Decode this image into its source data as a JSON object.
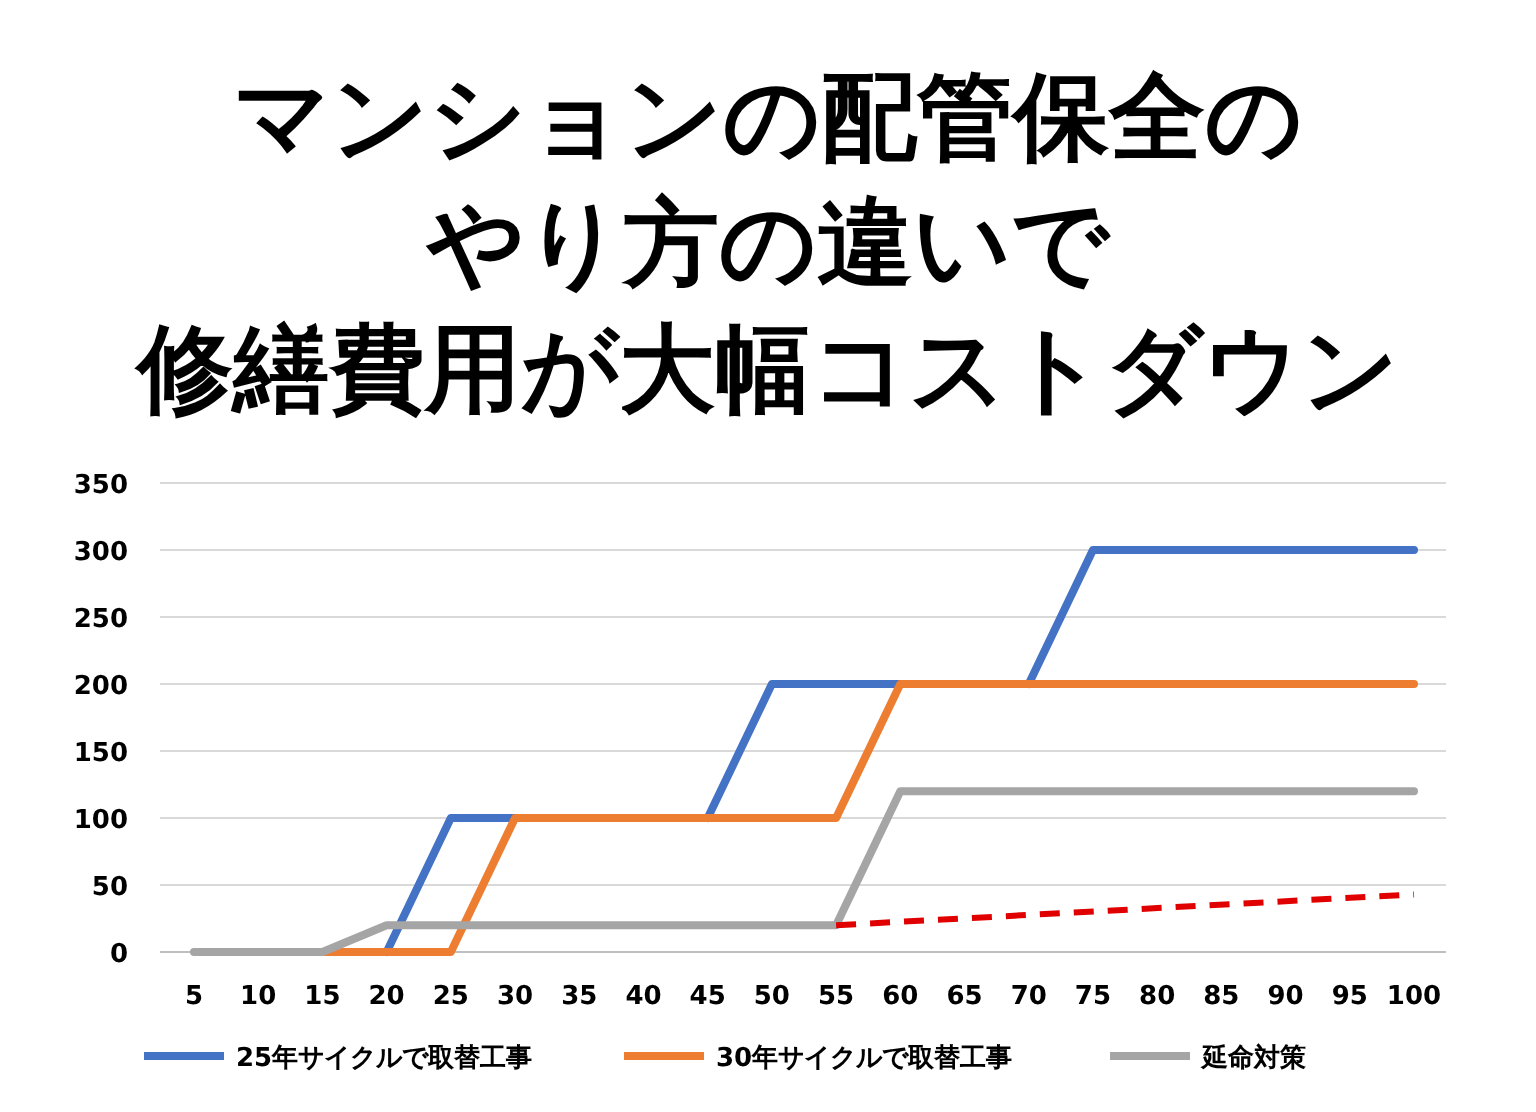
{
  "chart_data": {
    "type": "line",
    "title": [
      "マンションの配管保全の",
      "やり方の違いで",
      "修繕費用が大幅コストダウン"
    ],
    "categories": [
      "5",
      "10",
      "15",
      "20",
      "25",
      "30",
      "35",
      "40",
      "45",
      "50",
      "55",
      "60",
      "65",
      "70",
      "75",
      "80",
      "85",
      "90",
      "95",
      "100"
    ],
    "ylim": [
      0,
      350
    ],
    "yticks": [
      0,
      50,
      100,
      150,
      200,
      250,
      300,
      350
    ],
    "grid": "y",
    "legend": "bottom",
    "marker": "none",
    "series": [
      {
        "name": "25年サイクルで取替工事",
        "color": "#4472c4",
        "x": [
          "20",
          "25",
          "30",
          "35",
          "40",
          "45",
          "50",
          "55",
          "60",
          "65",
          "70",
          "75",
          "80",
          "85",
          "90",
          "95",
          "100"
        ],
        "values": [
          0,
          100,
          100,
          null,
          null,
          100,
          200,
          200,
          200,
          null,
          200,
          300,
          300,
          300,
          300,
          300,
          300
        ]
      },
      {
        "name": "30年サイクルで取替工事",
        "color": "#ed7d31",
        "x": [
          "15",
          "20",
          "25",
          "30",
          "35",
          "40",
          "45",
          "50",
          "55",
          "60",
          "65",
          "70",
          "75",
          "80",
          "85",
          "90",
          "95",
          "100"
        ],
        "values": [
          0,
          0,
          0,
          100,
          100,
          100,
          100,
          100,
          100,
          200,
          200,
          200,
          200,
          200,
          200,
          200,
          200,
          200
        ]
      },
      {
        "name": "延命対策",
        "color": "#a5a5a5",
        "values": [
          0,
          0,
          0,
          20,
          20,
          20,
          20,
          20,
          20,
          20,
          20,
          120,
          120,
          120,
          120,
          120,
          120,
          120,
          120,
          120
        ]
      },
      {
        "color": "#e00000",
        "line_style": "dashed",
        "x": [
          "55",
          "100"
        ],
        "values": [
          20,
          43
        ]
      }
    ]
  }
}
